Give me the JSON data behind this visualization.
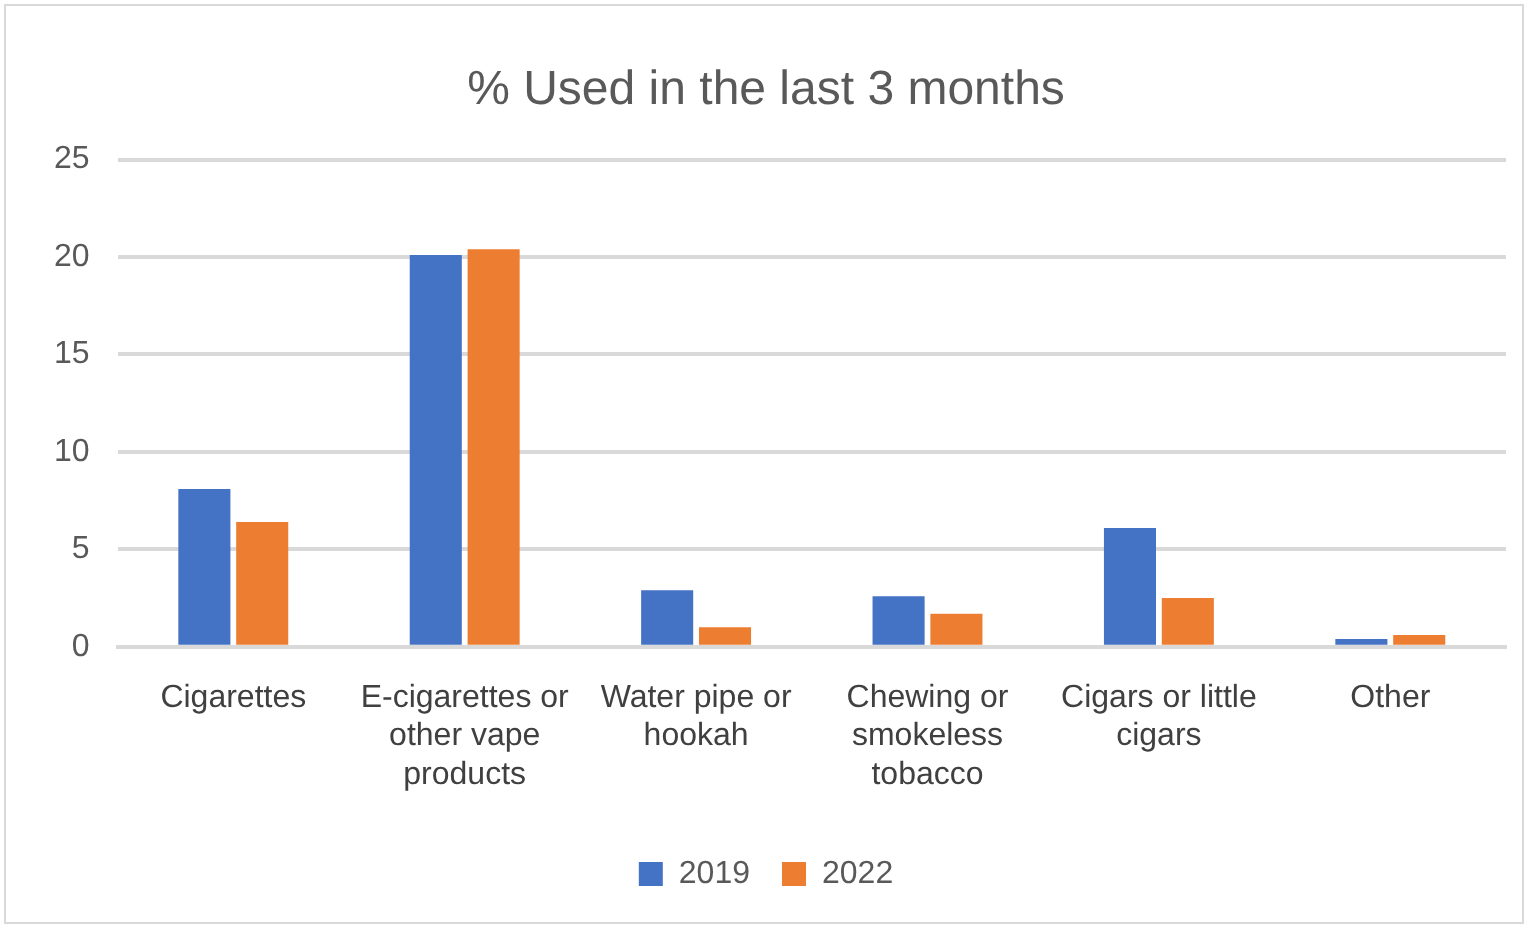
{
  "chart_data": {
    "type": "bar",
    "title": "% Used in the last 3 months",
    "categories": [
      "Cigarettes",
      "E-cigarettes or other vape products",
      "Water pipe or hookah",
      "Chewing or smokeless tobacco",
      "Cigars or little cigars",
      "Other"
    ],
    "series": [
      {
        "name": "2019",
        "color": "#4472c4",
        "values": [
          8.1,
          20.1,
          2.9,
          2.6,
          6.1,
          0.4
        ]
      },
      {
        "name": "2022",
        "color": "#ed7d31",
        "values": [
          6.4,
          20.4,
          1.0,
          1.7,
          2.5,
          0.6
        ]
      }
    ],
    "ylim": [
      0,
      25
    ],
    "yticks": [
      0,
      5,
      10,
      15,
      20,
      25
    ],
    "grid": "y",
    "legend": "bottom"
  }
}
